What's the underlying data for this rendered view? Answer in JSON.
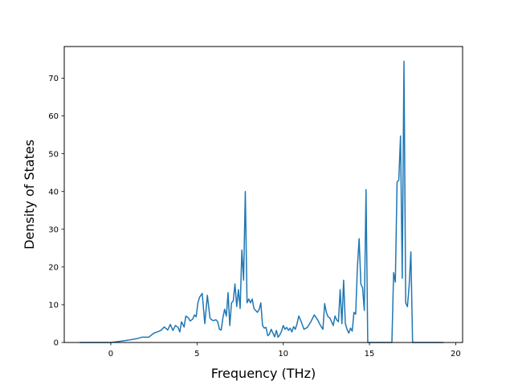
{
  "chart_data": {
    "type": "line",
    "title": "",
    "xlabel": "Frequency (THz)",
    "ylabel": "Density of States",
    "xlim": [
      -2.7,
      20.4
    ],
    "ylim": [
      0,
      78.4
    ],
    "xticks": [
      0,
      5,
      10,
      15,
      20
    ],
    "yticks": [
      0,
      10,
      20,
      30,
      40,
      50,
      60,
      70
    ],
    "grid": false,
    "legend": "none",
    "series": [
      {
        "color": "#1f77b4",
        "x": [
          -1.8,
          0.0,
          0.5,
          1.0,
          1.5,
          1.8,
          2.2,
          2.5,
          2.7,
          2.9,
          3.1,
          3.3,
          3.45,
          3.6,
          3.75,
          3.9,
          4.0,
          4.1,
          4.25,
          4.35,
          4.5,
          4.6,
          4.75,
          4.85,
          4.95,
          5.05,
          5.15,
          5.3,
          5.45,
          5.6,
          5.75,
          5.85,
          5.95,
          6.1,
          6.2,
          6.3,
          6.4,
          6.5,
          6.6,
          6.7,
          6.8,
          6.9,
          7.0,
          7.1,
          7.2,
          7.3,
          7.4,
          7.5,
          7.6,
          7.7,
          7.8,
          7.9,
          8.0,
          8.1,
          8.2,
          8.3,
          8.4,
          8.5,
          8.6,
          8.7,
          8.8,
          8.9,
          9.0,
          9.1,
          9.2,
          9.3,
          9.4,
          9.5,
          9.6,
          9.7,
          9.8,
          9.9,
          10.0,
          10.1,
          10.2,
          10.3,
          10.4,
          10.5,
          10.6,
          10.7,
          10.8,
          10.9,
          11.0,
          11.2,
          11.4,
          11.6,
          11.8,
          12.0,
          12.1,
          12.2,
          12.3,
          12.4,
          12.5,
          12.6,
          12.7,
          12.8,
          12.9,
          13.0,
          13.1,
          13.2,
          13.3,
          13.4,
          13.5,
          13.6,
          13.7,
          13.8,
          13.9,
          14.0,
          14.1,
          14.2,
          14.3,
          14.4,
          14.5,
          14.6,
          14.7,
          14.8,
          14.9,
          15.0,
          15.5,
          16.0,
          16.3,
          16.4,
          16.5,
          16.6,
          16.7,
          16.8,
          16.9,
          17.0,
          17.1,
          17.2,
          17.3,
          17.4,
          17.5,
          17.6,
          18.0,
          19.3
        ],
        "y": [
          0,
          0,
          0.3,
          0.6,
          1.0,
          1.4,
          1.4,
          2.5,
          2.8,
          3.2,
          4.1,
          3.3,
          4.8,
          3.2,
          4.5,
          4.0,
          2.8,
          5.5,
          4.1,
          7.0,
          6.5,
          5.7,
          6.2,
          7.3,
          6.8,
          10.5,
          12.0,
          13.0,
          5.0,
          12.5,
          6.5,
          6.0,
          5.8,
          6.0,
          5.5,
          3.5,
          3.3,
          6.5,
          8.8,
          7.0,
          13.2,
          4.5,
          10.5,
          11.0,
          15.5,
          9.5,
          14.0,
          9.0,
          24.5,
          16.5,
          40.0,
          10.5,
          11.5,
          10.5,
          11.5,
          9.0,
          8.5,
          8.0,
          8.7,
          10.5,
          4.5,
          3.8,
          4.0,
          1.8,
          2.2,
          3.5,
          2.5,
          1.5,
          3.2,
          1.4,
          2.0,
          3.0,
          4.5,
          3.5,
          4.0,
          3.2,
          3.8,
          2.8,
          4.2,
          3.5,
          5.0,
          7.0,
          6.0,
          3.5,
          4.0,
          5.5,
          7.3,
          6.0,
          5.0,
          4.2,
          3.5,
          10.3,
          8.0,
          6.8,
          6.5,
          5.5,
          4.5,
          7.0,
          6.0,
          5.5,
          14.0,
          5.0,
          16.5,
          5.0,
          3.5,
          2.5,
          3.8,
          3.0,
          8.0,
          7.5,
          20.0,
          27.5,
          15.5,
          14.5,
          8.5,
          40.5,
          0,
          0,
          0,
          0,
          0,
          18.5,
          16.0,
          42.5,
          43.0,
          54.7,
          17.0,
          74.5,
          10.5,
          9.5,
          15.0,
          24.0,
          0,
          0,
          0,
          0
        ]
      }
    ]
  }
}
